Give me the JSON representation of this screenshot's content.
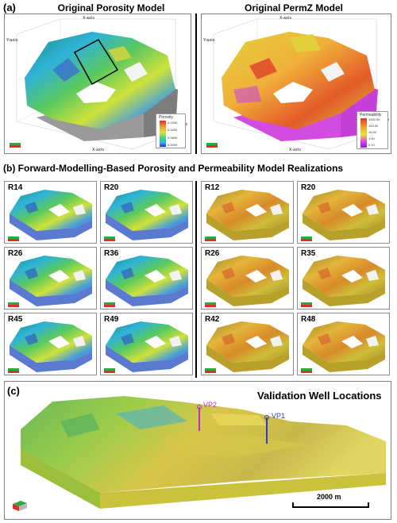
{
  "panel_a": {
    "label": "(a)",
    "left_title": "Original Porosity Model",
    "right_title": "Original PermZ Model",
    "porosity_legend": {
      "title": "Porosity",
      "ticks": [
        "0.2400",
        "0.1600",
        "0.0800",
        "0.0000"
      ]
    },
    "perm_legend": {
      "title": "Permeability",
      "ticks": [
        "1000.00",
        "100.00",
        "10.00",
        "1.00",
        "0.10"
      ]
    },
    "axis_text": {
      "x_axis": "X-axis",
      "y_axis": "Y-axis"
    }
  },
  "panel_b": {
    "label": "(b)",
    "title": "Forward-Modelling-Based Porosity and Permeability Model Realizations",
    "porosity_realizations": [
      "R14",
      "R20",
      "R26",
      "R36",
      "R45",
      "R49"
    ],
    "perm_realizations": [
      "R12",
      "R20",
      "R26",
      "R35",
      "R42",
      "R48"
    ]
  },
  "panel_c": {
    "label": "(c)",
    "title": "Validation Well Locations",
    "wells": [
      "VP1",
      "VP2"
    ],
    "scale_bar": "2000 m"
  },
  "colors": {
    "porosity_scale": [
      "#2a1fd6",
      "#22b8e8",
      "#44d87a",
      "#d9e33a",
      "#f2a22d",
      "#e0302b"
    ],
    "perm_scale": [
      "#8b1fd8",
      "#e23fe0",
      "#e8e33a",
      "#f2a22d",
      "#d93a2b"
    ]
  }
}
